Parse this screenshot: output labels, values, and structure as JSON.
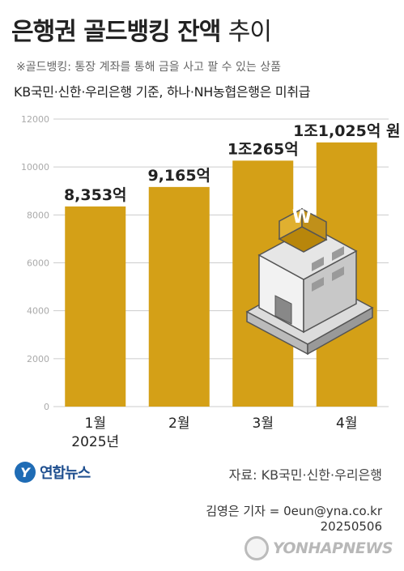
{
  "title": {
    "main": "은행권 골드뱅킹 잔액",
    "suffix": "추이"
  },
  "note": "※골드뱅킹: 통장 계좌를 통해 금을 사고 팔 수 있는 상품",
  "subtitle": "KB국민·신한·우리은행 기준, 하나·NH농협은행은 미취급",
  "chart_data": {
    "type": "bar",
    "categories": [
      "1월",
      "2월",
      "3월",
      "4월"
    ],
    "category_sublabels": [
      "2025년",
      "",
      "",
      ""
    ],
    "values": [
      8353,
      9165,
      10265,
      11025
    ],
    "value_labels": [
      "8,353억",
      "9,165억",
      "1조265억",
      "1조1,025억 원"
    ],
    "yticks": [
      0,
      2000,
      4000,
      6000,
      8000,
      10000,
      12000
    ],
    "ylim": [
      0,
      12000
    ],
    "grid": true,
    "bar_color": "#d4a017"
  },
  "illustration_sign": "W",
  "logo": {
    "mark": "Y",
    "name": "연합뉴스"
  },
  "source": "자료: KB국민·신한·우리은행",
  "credit": "김영은 기자 = 0eun@yna.co.kr",
  "date": "20250506",
  "watermark": "YONHAPNEWS"
}
